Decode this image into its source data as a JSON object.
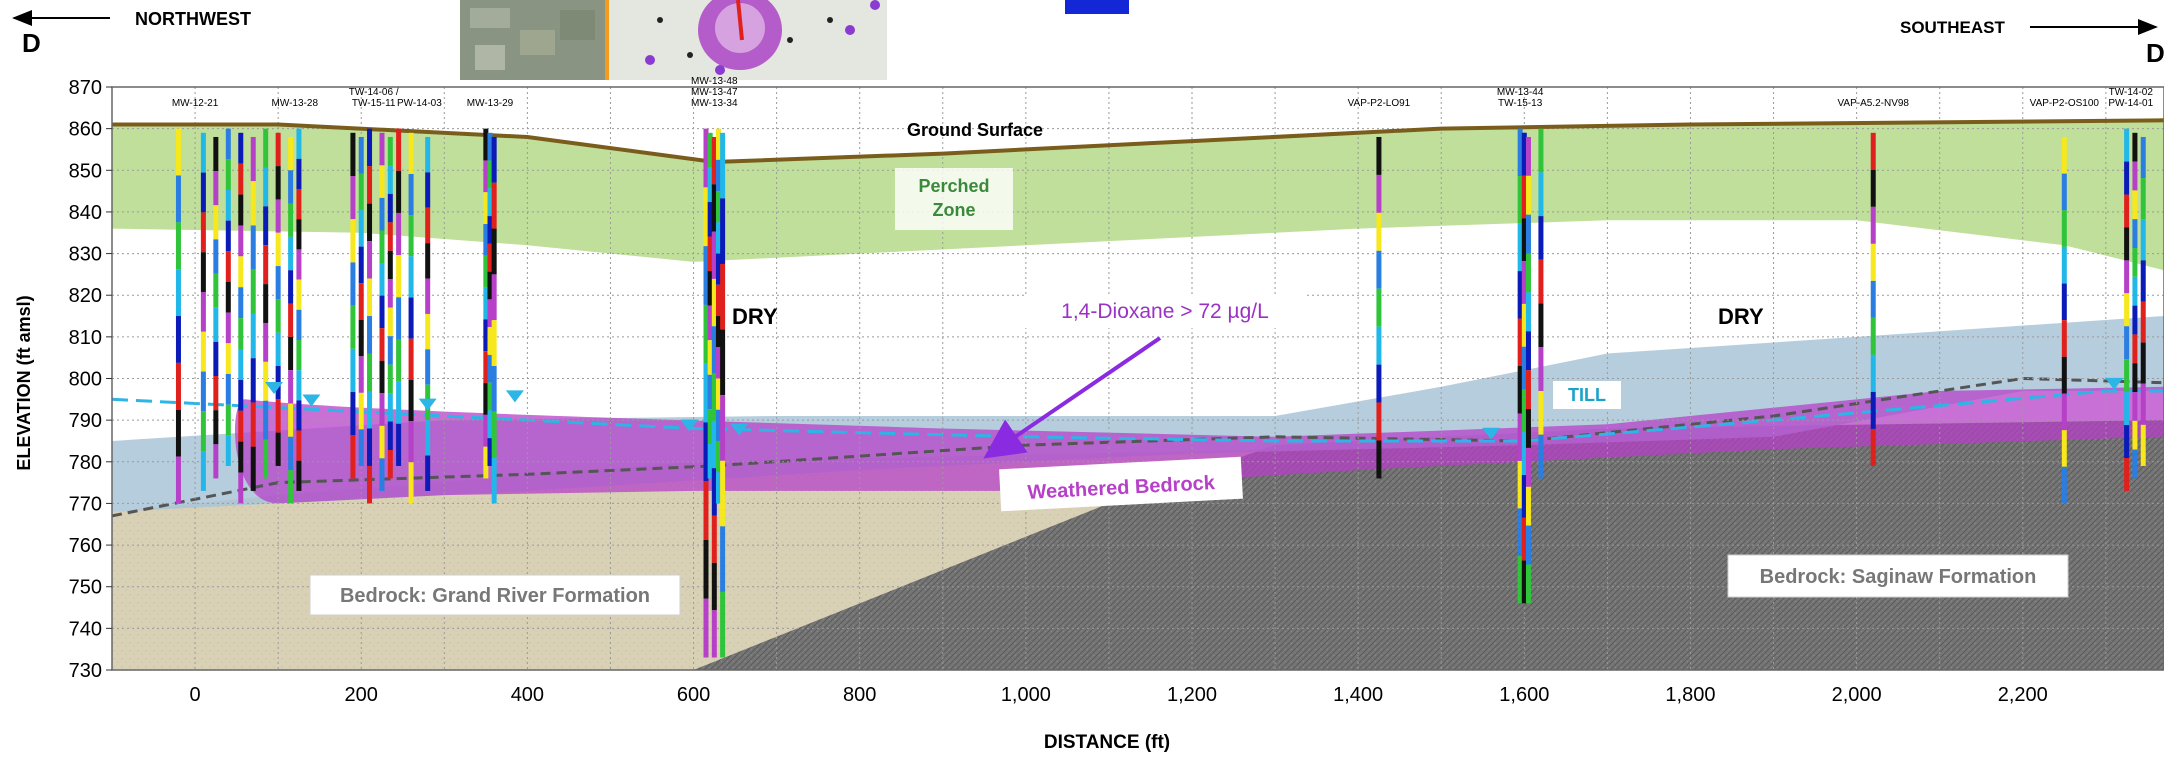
{
  "header": {
    "west_direction": "NORTHWEST",
    "east_direction": "SOUTHEAST",
    "section_start": "D",
    "section_end": "D'"
  },
  "axes": {
    "ylabel": "ELEVATION (ft amsl)",
    "xlabel": "DISTANCE (ft)",
    "y_ticks": [
      "870",
      "860",
      "850",
      "840",
      "830",
      "820",
      "810",
      "800",
      "790",
      "780",
      "770",
      "760",
      "750",
      "740",
      "730"
    ],
    "x_ticks": [
      "0",
      "200",
      "400",
      "600",
      "800",
      "1,000",
      "1,200",
      "1,400",
      "1,600",
      "1,800",
      "2,000",
      "2,200"
    ],
    "x_range": [
      -100,
      2370
    ],
    "y_range": [
      730,
      870
    ]
  },
  "units": {
    "ground_surface": "Ground Surface",
    "perched_zone_line1": "Perched",
    "perched_zone_line2": "Zone",
    "dry_west": "DRY",
    "dry_east": "DRY",
    "till": "TILL",
    "weathered_bedrock": "Weathered Bedrock",
    "bedrock_grand_river": "Bedrock: Grand River Formation",
    "bedrock_saginaw": "Bedrock: Saginaw Formation",
    "plume_label": "1,4-Dioxane > 72 µg/L"
  },
  "wells": [
    {
      "label": "MW-12-21",
      "x": 0
    },
    {
      "label": "MW-13-28",
      "x": 120
    },
    {
      "label": "TW-14-06 /",
      "x": 215
    },
    {
      "label": "TW-15-11",
      "x": 215
    },
    {
      "label": "PW-14-03",
      "x": 270
    },
    {
      "label": "MW-13-29",
      "x": 355
    },
    {
      "label": "MW-13-48",
      "x": 625
    },
    {
      "label": "MW-13-47",
      "x": 625
    },
    {
      "label": "MW-13-34",
      "x": 625
    },
    {
      "label": "VAP-P2-LO91",
      "x": 1425
    },
    {
      "label": "MW-13-44",
      "x": 1595
    },
    {
      "label": "TW-15-13",
      "x": 1595
    },
    {
      "label": "VAP-A5.2-NV98",
      "x": 2020
    },
    {
      "label": "VAP-P2-OS100",
      "x": 2250
    },
    {
      "label": "TW-14-02",
      "x": 2330
    },
    {
      "label": "PW-14-01",
      "x": 2330
    }
  ],
  "colors": {
    "perched_zone": "#b9dc8f",
    "till": "#a9c4d8",
    "bedrock_west": "#d8cfb3",
    "bedrock_east": "#6d6d6d",
    "plume": "#b640c8",
    "water_table": "#2db5e6",
    "ground_line": "#7a5d1c",
    "plume_label": "#9a32c4"
  }
}
